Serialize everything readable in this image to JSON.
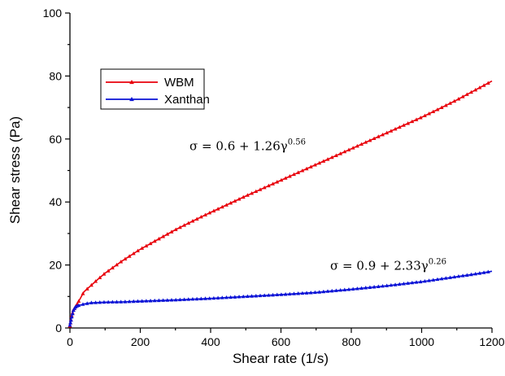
{
  "chart_data": {
    "type": "line",
    "title": "",
    "xlabel": "Shear rate (1/s)",
    "ylabel": "Shear stress (Pa)",
    "xlim": [
      0,
      1200
    ],
    "ylim": [
      0,
      100
    ],
    "xticks": [
      "0",
      "200",
      "400",
      "600",
      "800",
      "1000",
      "1200"
    ],
    "yticks": [
      "0",
      "20",
      "40",
      "60",
      "80",
      "100"
    ],
    "grid": false,
    "legend_position": "upper-left",
    "marker": "triangle",
    "series": [
      {
        "name": "WBM",
        "color": "#e8000b",
        "x": [
          0,
          5,
          10,
          20,
          40,
          60,
          80,
          100,
          150,
          200,
          250,
          300,
          350,
          400,
          450,
          500,
          550,
          600,
          650,
          700,
          750,
          800,
          850,
          900,
          950,
          1000,
          1050,
          1100,
          1150,
          1200
        ],
        "y": [
          0.6,
          3.9,
          5.7,
          7.5,
          11.5,
          13.5,
          15.5,
          17.4,
          21.4,
          25.0,
          28.1,
          31.2,
          34.0,
          36.7,
          39.3,
          41.9,
          44.4,
          46.9,
          49.4,
          51.9,
          54.4,
          56.9,
          59.4,
          61.9,
          64.4,
          66.9,
          69.6,
          72.4,
          75.4,
          78.4
        ]
      },
      {
        "name": "Xanthan",
        "color": "#0a12d6",
        "x": [
          0,
          5,
          10,
          15,
          20,
          30,
          40,
          60,
          80,
          100,
          150,
          200,
          300,
          400,
          500,
          600,
          700,
          800,
          900,
          1000,
          1050,
          1100,
          1150,
          1200
        ],
        "y": [
          0.9,
          3.5,
          5.6,
          6.6,
          7.0,
          7.3,
          7.6,
          8.0,
          8.1,
          8.2,
          8.3,
          8.5,
          8.9,
          9.4,
          10.0,
          10.6,
          11.3,
          12.3,
          13.4,
          14.7,
          15.5,
          16.3,
          17.1,
          18.0
        ]
      }
    ],
    "annotations": [
      {
        "main": "σ = 0.6 + 1.26γ",
        "sup": "0.56",
        "x": 340,
        "y": 56.5
      },
      {
        "main": "σ = 0.9 + 2.33γ",
        "sup": "0.26",
        "x": 740,
        "y": 18.5
      }
    ]
  }
}
